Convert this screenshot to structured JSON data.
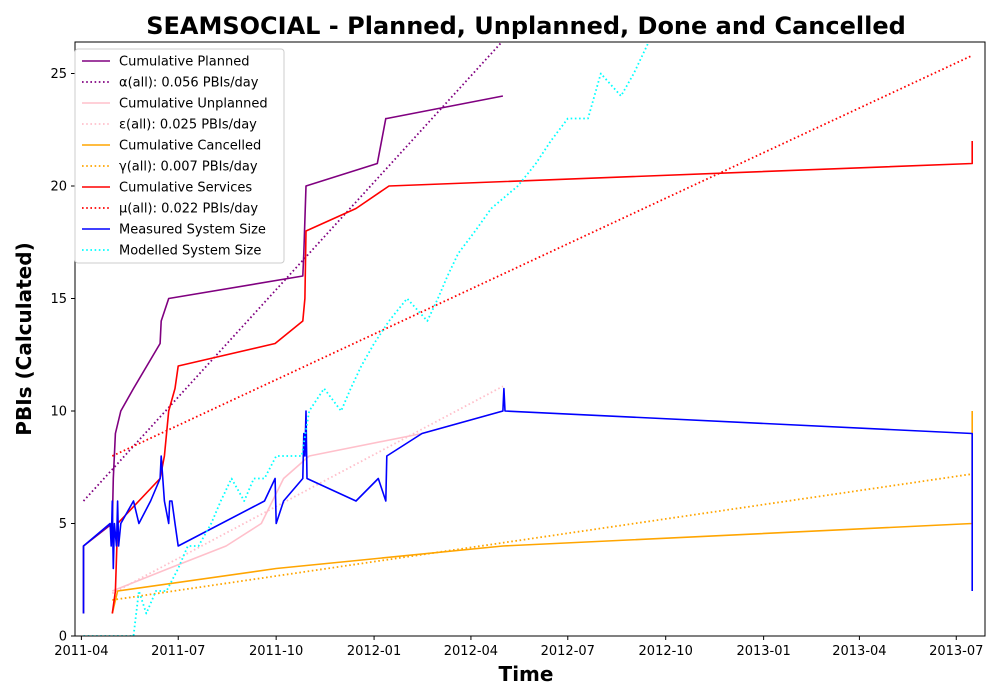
{
  "chart_data": {
    "type": "line",
    "title": "SEAMSOCIAL - Planned, Unplanned, Done  and Cancelled",
    "xlabel": "Time",
    "ylabel": "PBIs (Calculated)",
    "xlim": [
      "2011-03-26",
      "2013-07-28"
    ],
    "ylim": [
      0,
      26.4
    ],
    "x_ticks": [
      "2011-04",
      "2011-07",
      "2011-10",
      "2012-01",
      "2012-04",
      "2012-07",
      "2012-10",
      "2013-01",
      "2013-04",
      "2013-07"
    ],
    "y_ticks": [
      0,
      5,
      10,
      15,
      20,
      25
    ],
    "grid": false,
    "legend_position": "top-left",
    "series": [
      {
        "name": "Cumulative Planned",
        "color": "#800080",
        "style": "solid",
        "points": [
          [
            "2011-04-03",
            1
          ],
          [
            "2011-04-03",
            4
          ],
          [
            "2011-04-30",
            5
          ],
          [
            "2011-05-01",
            7
          ],
          [
            "2011-05-03",
            9
          ],
          [
            "2011-05-08",
            10
          ],
          [
            "2011-05-20",
            11
          ],
          [
            "2011-06-14",
            13
          ],
          [
            "2011-06-15",
            14
          ],
          [
            "2011-06-22",
            15
          ],
          [
            "2011-10-26",
            16
          ],
          [
            "2011-10-27",
            17
          ],
          [
            "2011-10-29",
            20
          ],
          [
            "2012-01-04",
            21
          ],
          [
            "2012-01-12",
            23
          ],
          [
            "2012-01-13",
            23
          ],
          [
            "2012-05-01",
            24
          ]
        ]
      },
      {
        "name": "α(all): 0.056 PBIs/day",
        "color": "#800080",
        "style": "dotted",
        "points": [
          [
            "2011-04-03",
            6
          ],
          [
            "2012-04-30",
            26.4
          ]
        ]
      },
      {
        "name": "Cumulative Unplanned",
        "color": "#ffc0cb",
        "style": "solid",
        "points": [
          [
            "2011-04-30",
            2
          ],
          [
            "2011-06-22",
            3
          ],
          [
            "2011-08-15",
            4
          ],
          [
            "2011-09-17",
            5
          ],
          [
            "2011-10-08",
            7
          ],
          [
            "2011-11-01",
            8
          ],
          [
            "2012-02-15",
            9
          ],
          [
            "2012-05-01",
            10
          ]
        ]
      },
      {
        "name": "ε(all): 0.025 PBIs/day",
        "color": "#ffc0cb",
        "style": "dotted",
        "points": [
          [
            "2011-04-30",
            1.9
          ],
          [
            "2012-05-01",
            11.1
          ]
        ]
      },
      {
        "name": "Cumulative Cancelled",
        "color": "#ffa500",
        "style": "solid",
        "points": [
          [
            "2011-04-30",
            1
          ],
          [
            "2011-05-05",
            2
          ],
          [
            "2011-10-01",
            3
          ],
          [
            "2012-05-01",
            4
          ],
          [
            "2013-07-16",
            5
          ],
          [
            "2013-07-16",
            10
          ]
        ]
      },
      {
        "name": "γ(all): 0.007 PBIs/day",
        "color": "#ffa500",
        "style": "dotted",
        "points": [
          [
            "2011-04-30",
            1.6
          ],
          [
            "2013-07-16",
            7.2
          ]
        ]
      },
      {
        "name": "Cumulative Services",
        "color": "#ff0000",
        "style": "solid",
        "points": [
          [
            "2011-04-30",
            1
          ],
          [
            "2011-05-03",
            2
          ],
          [
            "2011-05-05",
            5
          ],
          [
            "2011-06-14",
            7
          ],
          [
            "2011-06-18",
            8
          ],
          [
            "2011-06-22",
            10
          ],
          [
            "2011-06-28",
            11
          ],
          [
            "2011-07-01",
            12
          ],
          [
            "2011-09-30",
            13
          ],
          [
            "2011-10-26",
            14
          ],
          [
            "2011-10-28",
            15
          ],
          [
            "2011-10-29",
            18
          ],
          [
            "2011-12-15",
            19
          ],
          [
            "2012-01-15",
            20
          ],
          [
            "2013-07-16",
            21
          ],
          [
            "2013-07-16",
            22
          ]
        ]
      },
      {
        "name": "μ(all): 0.022 PBIs/day",
        "color": "#ff0000",
        "style": "dotted",
        "points": [
          [
            "2011-04-30",
            8
          ],
          [
            "2013-07-16",
            25.8
          ]
        ]
      },
      {
        "name": "Measured System Size",
        "color": "#0000ff",
        "style": "solid",
        "points": [
          [
            "2011-04-03",
            1
          ],
          [
            "2011-04-03",
            4
          ],
          [
            "2011-04-28",
            5
          ],
          [
            "2011-04-29",
            4
          ],
          [
            "2011-04-30",
            6
          ],
          [
            "2011-05-01",
            3
          ],
          [
            "2011-05-02",
            5
          ],
          [
            "2011-05-04",
            4
          ],
          [
            "2011-05-05",
            6
          ],
          [
            "2011-05-06",
            4
          ],
          [
            "2011-05-08",
            5
          ],
          [
            "2011-05-20",
            6
          ],
          [
            "2011-05-25",
            5
          ],
          [
            "2011-06-05",
            6
          ],
          [
            "2011-06-14",
            7
          ],
          [
            "2011-06-15",
            8
          ],
          [
            "2011-06-18",
            6
          ],
          [
            "2011-06-22",
            5
          ],
          [
            "2011-06-23",
            6
          ],
          [
            "2011-06-25",
            6
          ],
          [
            "2011-06-28",
            5
          ],
          [
            "2011-07-01",
            4
          ],
          [
            "2011-09-20",
            6
          ],
          [
            "2011-09-30",
            7
          ],
          [
            "2011-10-01",
            5
          ],
          [
            "2011-10-08",
            6
          ],
          [
            "2011-10-26",
            7
          ],
          [
            "2011-10-27",
            9
          ],
          [
            "2011-10-28",
            8
          ],
          [
            "2011-10-29",
            10
          ],
          [
            "2011-10-30",
            7
          ],
          [
            "2011-12-15",
            6
          ],
          [
            "2012-01-05",
            7
          ],
          [
            "2012-01-12",
            6
          ],
          [
            "2012-01-13",
            8
          ],
          [
            "2012-02-15",
            9
          ],
          [
            "2012-05-01",
            10
          ],
          [
            "2012-05-02",
            11
          ],
          [
            "2012-05-03",
            10
          ],
          [
            "2013-07-16",
            9
          ],
          [
            "2013-07-16",
            2
          ]
        ]
      },
      {
        "name": "Modelled System Size",
        "color": "#00ffff",
        "style": "dotted",
        "points": [
          [
            "2011-04-03",
            0
          ],
          [
            "2011-05-20",
            0
          ],
          [
            "2011-05-25",
            2
          ],
          [
            "2011-06-01",
            1
          ],
          [
            "2011-06-10",
            2
          ],
          [
            "2011-06-20",
            2
          ],
          [
            "2011-07-01",
            3
          ],
          [
            "2011-07-10",
            4
          ],
          [
            "2011-07-20",
            4
          ],
          [
            "2011-08-01",
            5
          ],
          [
            "2011-08-10",
            6
          ],
          [
            "2011-08-20",
            7
          ],
          [
            "2011-09-01",
            6
          ],
          [
            "2011-09-10",
            7
          ],
          [
            "2011-09-20",
            7
          ],
          [
            "2011-10-01",
            8
          ],
          [
            "2011-10-25",
            8
          ],
          [
            "2011-11-01",
            10
          ],
          [
            "2011-11-15",
            11
          ],
          [
            "2011-12-01",
            10
          ],
          [
            "2011-12-10",
            11
          ],
          [
            "2011-12-20",
            12
          ],
          [
            "2012-01-01",
            13
          ],
          [
            "2012-01-15",
            14
          ],
          [
            "2012-02-01",
            15
          ],
          [
            "2012-02-20",
            14
          ],
          [
            "2012-03-01",
            15
          ],
          [
            "2012-03-10",
            16
          ],
          [
            "2012-03-20",
            17
          ],
          [
            "2012-04-05",
            18
          ],
          [
            "2012-04-20",
            19
          ],
          [
            "2012-05-15",
            20
          ],
          [
            "2012-06-01",
            21
          ],
          [
            "2012-06-15",
            22
          ],
          [
            "2012-07-01",
            23
          ],
          [
            "2012-07-20",
            23
          ],
          [
            "2012-08-01",
            25
          ],
          [
            "2012-08-20",
            24
          ],
          [
            "2012-09-01",
            25
          ],
          [
            "2012-09-15",
            26.4
          ]
        ]
      }
    ]
  }
}
